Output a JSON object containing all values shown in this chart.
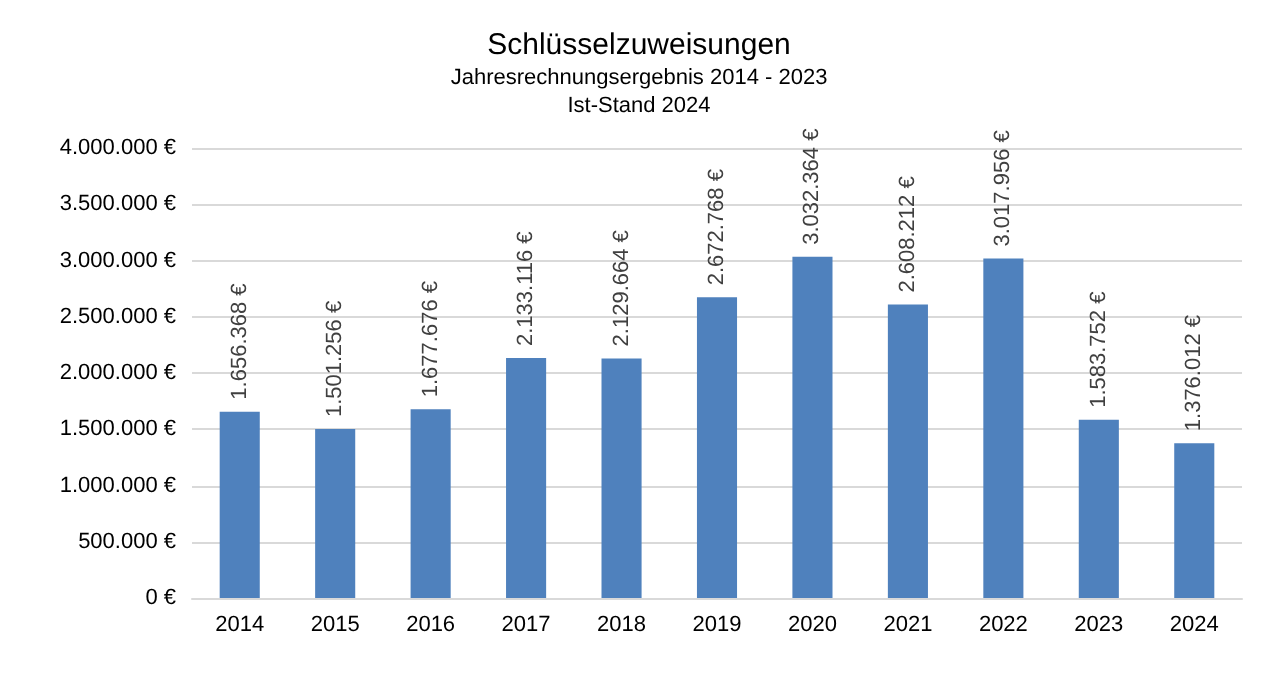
{
  "chart_data": {
    "type": "bar",
    "title": "Schlüsselzuweisungen",
    "subtitle": "Jahresrechnungsergebnis 2014 - 2023\nIst-Stand 2024",
    "categories": [
      "2014",
      "2015",
      "2016",
      "2017",
      "2018",
      "2019",
      "2020",
      "2021",
      "2022",
      "2023",
      "2024"
    ],
    "values": [
      1656368,
      1501256,
      1677676,
      2133116,
      2129664,
      2672768,
      3032364,
      2608212,
      3017956,
      1583752,
      1376012
    ],
    "value_labels": [
      "1.656.368 €",
      "1.501.256 €",
      "1.677.676 €",
      "2.133.116 €",
      "2.129.664 €",
      "2.672.768 €",
      "3.032.364 €",
      "2.608.212 €",
      "3.017.956 €",
      "1.583.752 €",
      "1.376.012 €"
    ],
    "color": "#4f81bd",
    "ylim": [
      0,
      4000000
    ],
    "yticks": [
      {
        "value": 0,
        "label": "0 €"
      },
      {
        "value": 500000,
        "label": "500.000 €"
      },
      {
        "value": 1000000,
        "label": "1.000.000 €"
      },
      {
        "value": 1500000,
        "label": "1.500.000 €"
      },
      {
        "value": 2000000,
        "label": "2.000.000 €"
      },
      {
        "value": 2500000,
        "label": "2.500.000 €"
      },
      {
        "value": 3000000,
        "label": "3.000.000 €"
      },
      {
        "value": 3500000,
        "label": "3.500.000 €"
      },
      {
        "value": 4000000,
        "label": "4.000.000 €"
      }
    ],
    "grid": "y"
  }
}
